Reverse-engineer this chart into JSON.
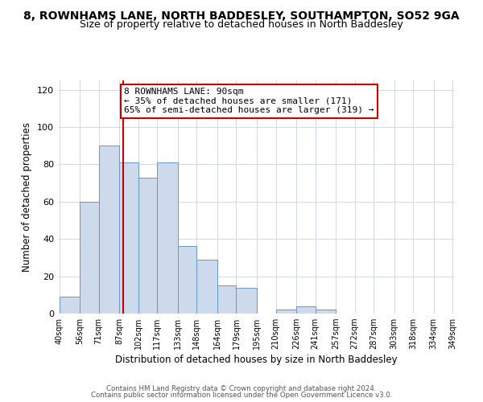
{
  "title": "8, ROWNHAMS LANE, NORTH BADDESLEY, SOUTHAMPTON, SO52 9GA",
  "subtitle": "Size of property relative to detached houses in North Baddesley",
  "xlabel": "Distribution of detached houses by size in North Baddesley",
  "ylabel": "Number of detached properties",
  "bar_edges": [
    40,
    56,
    71,
    87,
    102,
    117,
    133,
    148,
    164,
    179,
    195,
    210,
    226,
    241,
    257,
    272,
    287,
    303,
    318,
    334,
    349
  ],
  "bar_heights": [
    9,
    60,
    90,
    81,
    73,
    81,
    36,
    29,
    15,
    14,
    0,
    2,
    4,
    2,
    0,
    0,
    0,
    0,
    0,
    0
  ],
  "bar_color": "#ccdaec",
  "bar_edge_color": "#6699cc",
  "vline_x": 90,
  "vline_color": "#cc0000",
  "annotation_line1": "8 ROWNHAMS LANE: 90sqm",
  "annotation_line2": "← 35% of detached houses are smaller (171)",
  "annotation_line3": "65% of semi-detached houses are larger (319) →",
  "annotation_box_color": "#ffffff",
  "annotation_box_edge": "#cc0000",
  "ylim": [
    0,
    125
  ],
  "tick_labels": [
    "40sqm",
    "56sqm",
    "71sqm",
    "87sqm",
    "102sqm",
    "117sqm",
    "133sqm",
    "148sqm",
    "164sqm",
    "179sqm",
    "195sqm",
    "210sqm",
    "226sqm",
    "241sqm",
    "257sqm",
    "272sqm",
    "287sqm",
    "303sqm",
    "318sqm",
    "334sqm",
    "349sqm"
  ],
  "footer_line1": "Contains HM Land Registry data © Crown copyright and database right 2024.",
  "footer_line2": "Contains public sector information licensed under the Open Government Licence v3.0.",
  "background_color": "#ffffff",
  "grid_color": "#d0d8e4",
  "title_fontsize": 10,
  "subtitle_fontsize": 9
}
